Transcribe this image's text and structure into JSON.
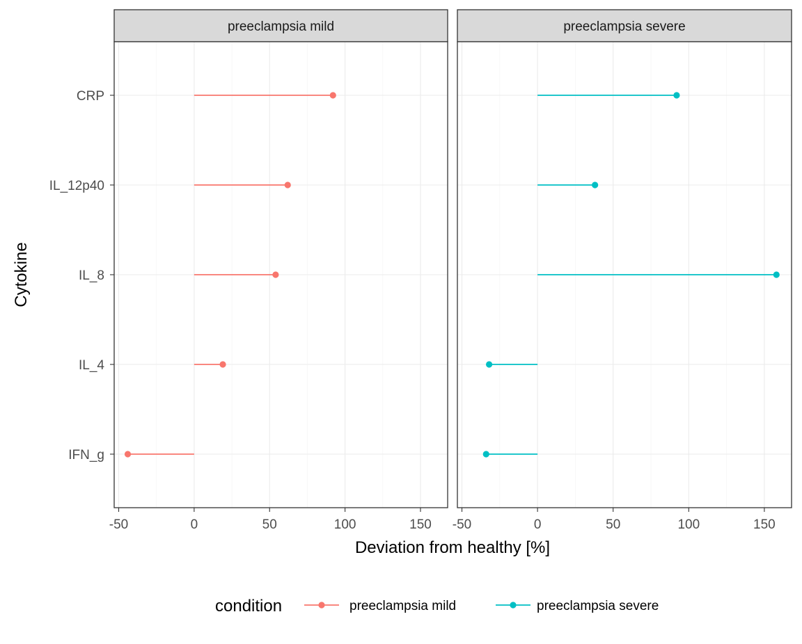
{
  "chart_data": {
    "type": "lollipop",
    "facets": [
      "preeclampsia mild",
      "preeclampsia severe"
    ],
    "categories": [
      "CRP",
      "IL_12p40",
      "IL_8",
      "IL_4",
      "IFN_g"
    ],
    "series": [
      {
        "name": "preeclampsia mild",
        "color": "#F8766D",
        "values": [
          92,
          62,
          54,
          19,
          -44
        ]
      },
      {
        "name": "preeclampsia severe",
        "color": "#00BFC4",
        "values": [
          92,
          38,
          158,
          -32,
          -34
        ]
      }
    ],
    "xlabel": "Deviation from healthy  [%]",
    "ylabel": "Cytokine",
    "xlim": [
      -53,
      168
    ],
    "xticks": [
      -50,
      0,
      50,
      100,
      150
    ],
    "xtick_labels": [
      "-50",
      "0",
      "50",
      "100",
      "150"
    ],
    "legend": {
      "title": "condition",
      "position": "bottom"
    },
    "grid": true
  }
}
